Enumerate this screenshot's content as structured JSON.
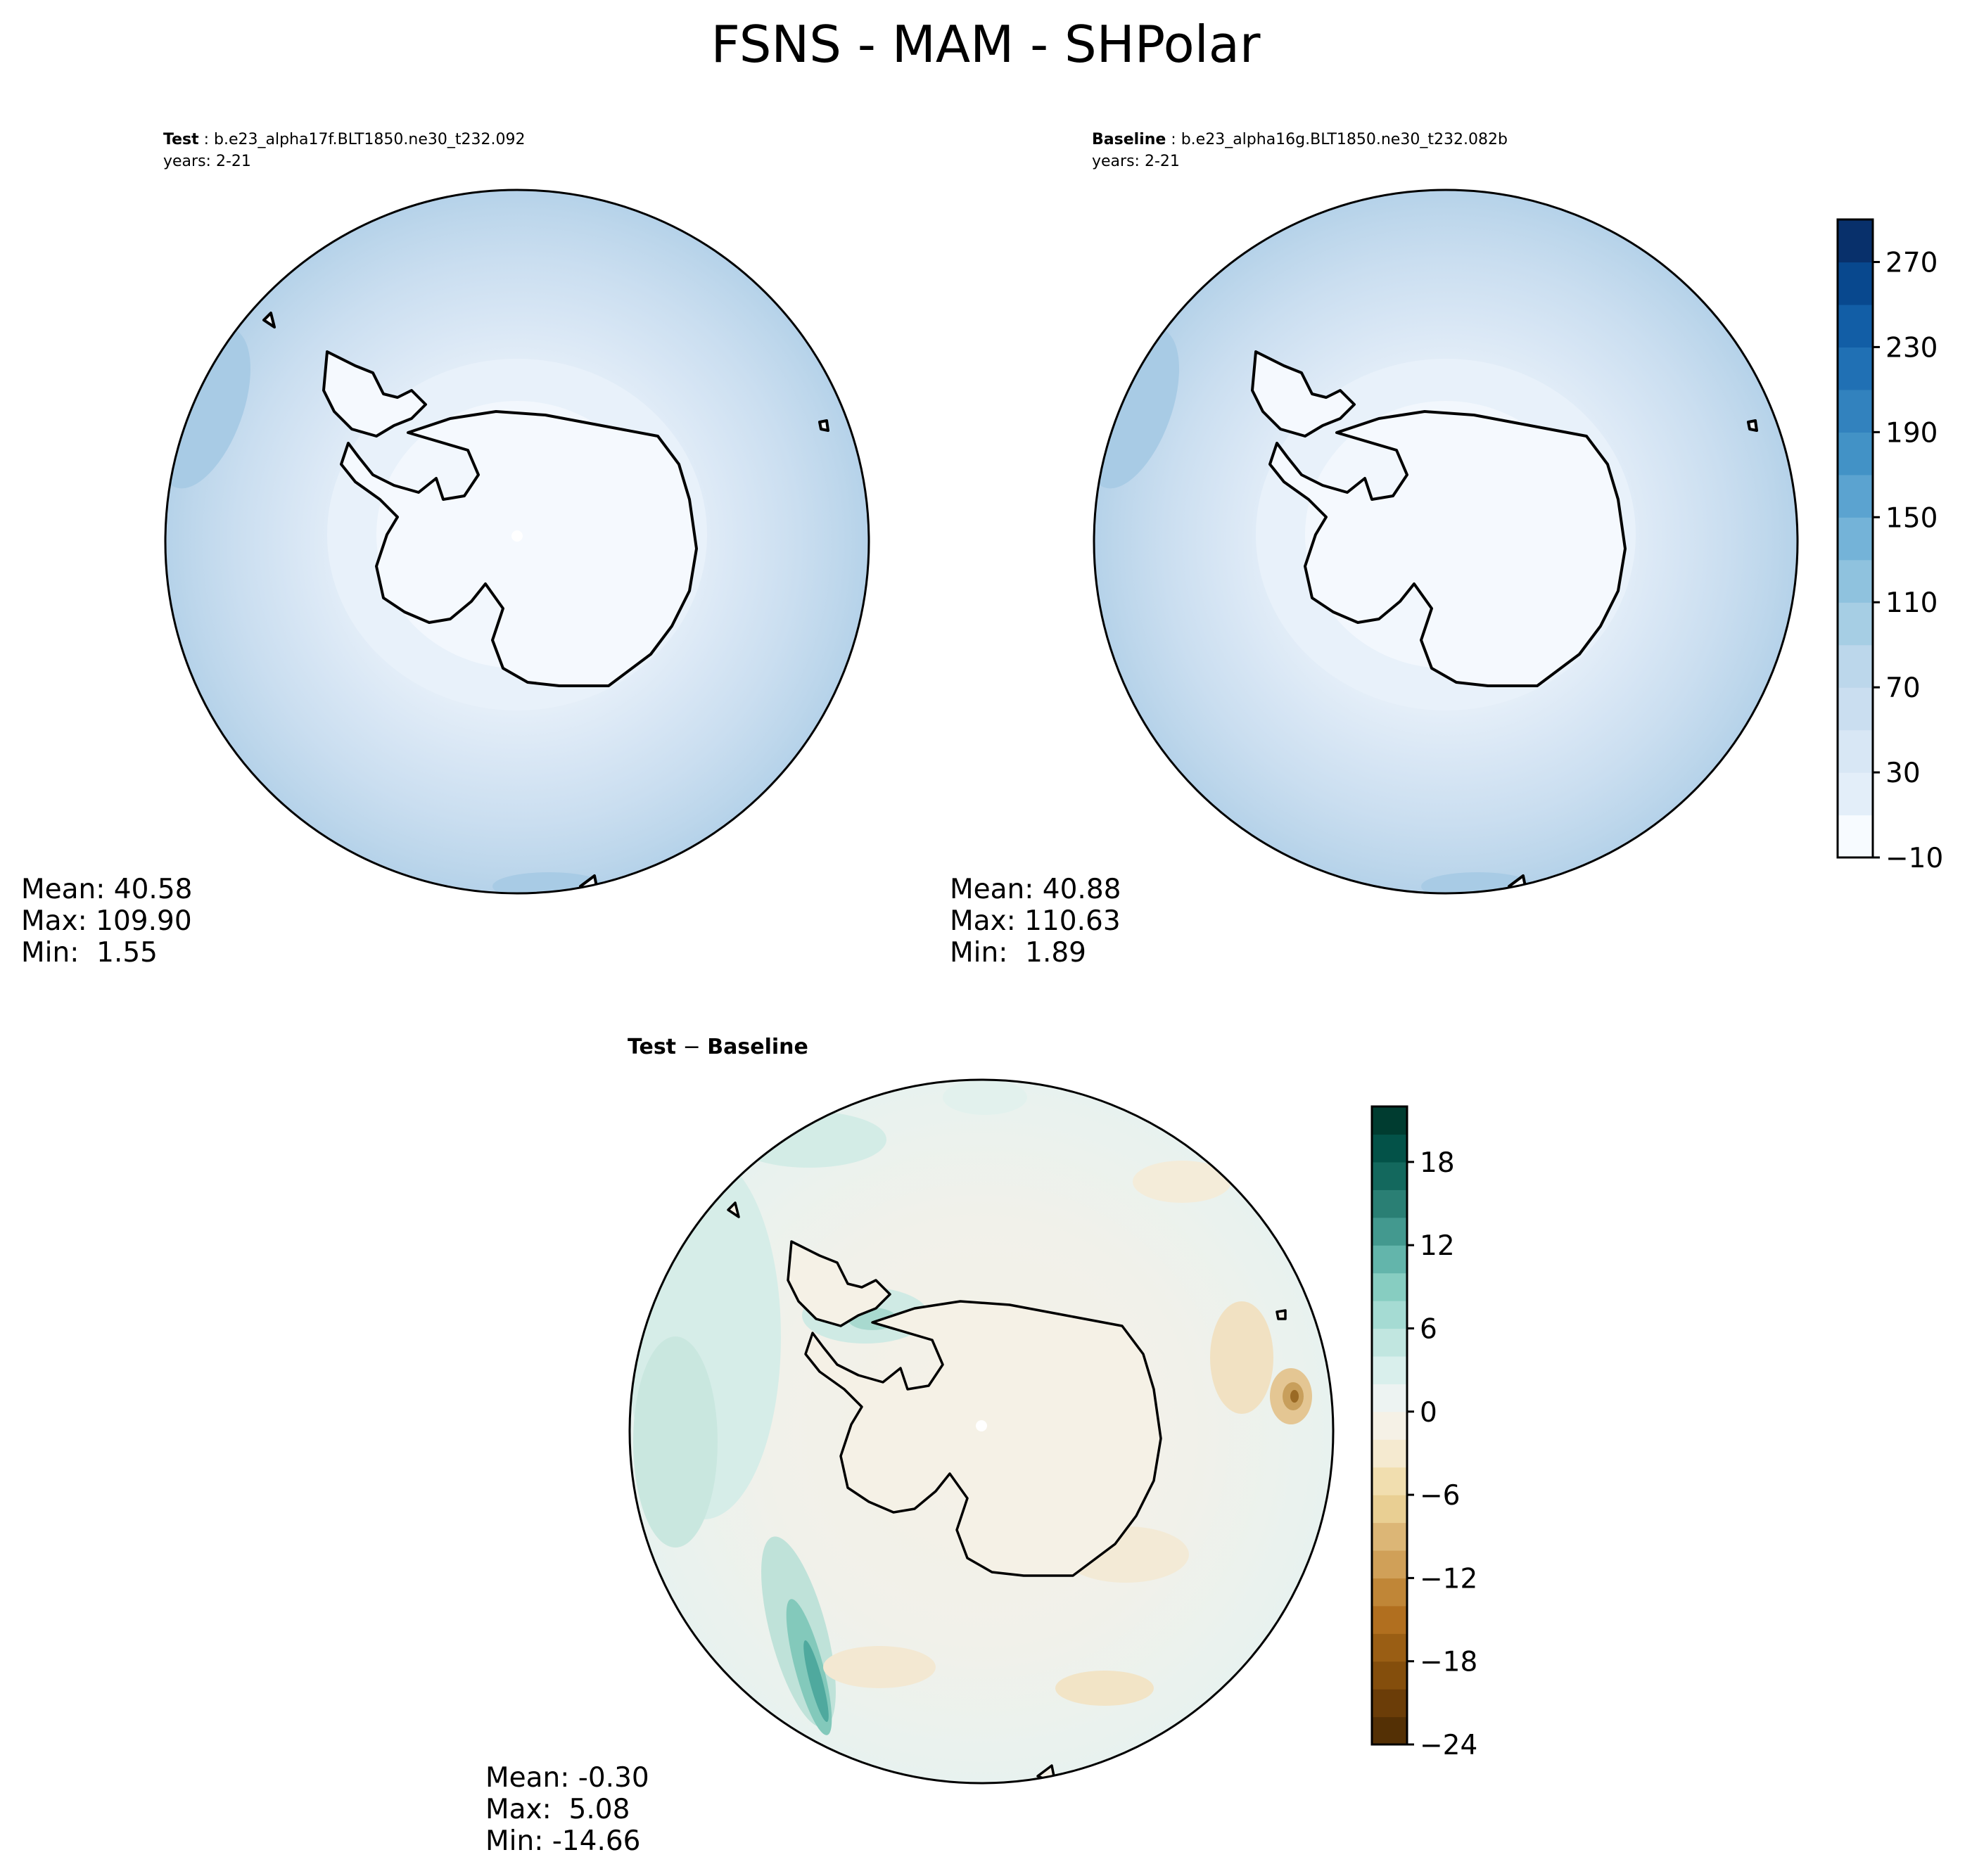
{
  "figure": {
    "title": "FSNS - MAM - SHPolar"
  },
  "test_panel": {
    "label": "Test",
    "case": "b.e23_alpha17f.BLT1850.ne30_t232.092",
    "years": "years: 2-21",
    "stats": {
      "mean": "Mean: 40.58",
      "max": "Max: 109.90",
      "min": "Min:  1.55"
    }
  },
  "baseline_panel": {
    "label": "Baseline",
    "case": "b.e23_alpha16g.BLT1850.ne30_t232.082b",
    "years": "years: 2-21",
    "stats": {
      "mean": "Mean: 40.88",
      "max": "Max: 110.63",
      "min": "Min:  1.89"
    }
  },
  "diff_panel": {
    "title_a": "Test",
    "title_sep": " − ",
    "title_b": "Baseline",
    "stats": {
      "mean": "Mean: -0.30",
      "max": "Max:  5.08",
      "min": "Min: -14.66"
    }
  },
  "colorbar_main": {
    "cmap": "Blues",
    "ticks": [
      "270",
      "230",
      "190",
      "150",
      "110",
      "70",
      "30",
      "−10"
    ],
    "tick_values": [
      270,
      230,
      190,
      150,
      110,
      70,
      30,
      -10
    ],
    "range": [
      -10,
      290
    ],
    "levels": 15,
    "colors": [
      "#f7fbff",
      "#e3eef9",
      "#d8e7f5",
      "#cadef0",
      "#bcd7eb",
      "#a6cee4",
      "#8fc2de",
      "#74b3d8",
      "#5ba3d0",
      "#4292c6",
      "#3282be",
      "#2070b4",
      "#125ea6",
      "#08488e",
      "#08306b"
    ]
  },
  "colorbar_diff": {
    "cmap": "BrBG",
    "ticks": [
      "18",
      "12",
      "6",
      "0",
      "−6",
      "−12",
      "−18",
      "−24"
    ],
    "tick_values": [
      18,
      12,
      6,
      0,
      -6,
      -12,
      -18,
      -24
    ],
    "range": [
      -24,
      22
    ],
    "levels": 23,
    "colors": [
      "#543005",
      "#6b3d08",
      "#844e0c",
      "#9a5e14",
      "#b16f1f",
      "#c08637",
      "#d0a058",
      "#dcb676",
      "#e9cf93",
      "#f1deaf",
      "#f5ead0",
      "#f5f1e6",
      "#edf3f2",
      "#d9efec",
      "#c1e6e0",
      "#a5dbd3",
      "#87cdc1",
      "#63b5ab",
      "#43998f",
      "#2a7f74",
      "#13685d",
      "#035248",
      "#003c30"
    ]
  }
}
